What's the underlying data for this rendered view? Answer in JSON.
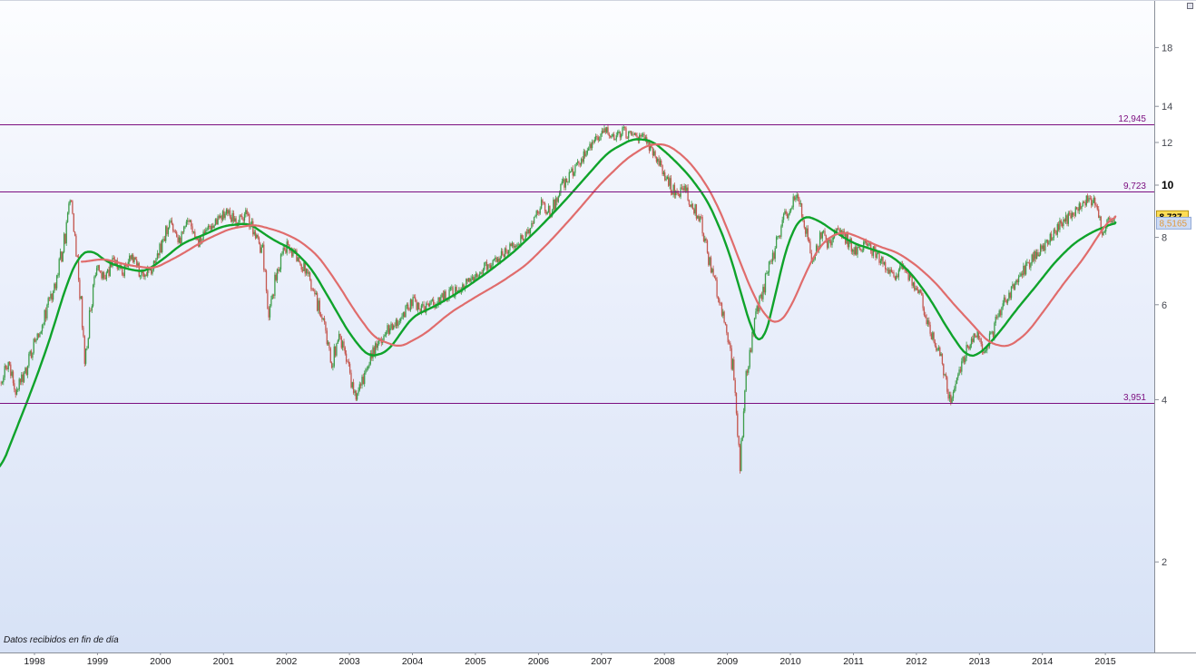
{
  "footer": {
    "note": "Datos recibidos en fin de día"
  },
  "colors": {
    "up_candle": "#3d9d4a",
    "down_candle": "#c4574f",
    "ma_green": "#0fa32b",
    "ma_red": "#e06c6c",
    "level": "#7c0f80",
    "axis_line": "#8a8f99",
    "tick_text": "#44474f",
    "tick_text_emph": "#000000",
    "year_text": "#1a1b1f",
    "bg_top": "#fcfdff",
    "bg_mid": "#eaeffb",
    "bg_bottom": "#d7e2f6",
    "tag_yellow_bg": "#ffdd55",
    "tag_yellow_border": "#b39112",
    "tag_yellow_text": "#000000",
    "tag_blue_bg": "#ccdbf6",
    "tag_blue_border": "#93a9d6",
    "tag_blue_text": "#e09a3e"
  },
  "chart_data": {
    "type": "candlestick",
    "title": "",
    "x_axis": {
      "years": [
        "1998",
        "1999",
        "2000",
        "2001",
        "2002",
        "2003",
        "2004",
        "2005",
        "2006",
        "2007",
        "2008",
        "2009",
        "2010",
        "2011",
        "2012",
        "2013",
        "2014",
        "2015"
      ],
      "start_year": 1998
    },
    "y_axis": {
      "scale": "log",
      "ticks": [
        {
          "label": "18",
          "value": 18,
          "emphasized": false
        },
        {
          "label": "14",
          "value": 14,
          "emphasized": false
        },
        {
          "label": "12",
          "value": 12,
          "emphasized": false
        },
        {
          "label": "10",
          "value": 10,
          "emphasized": true
        },
        {
          "label": "8",
          "value": 8,
          "emphasized": false
        },
        {
          "label": "6",
          "value": 6,
          "emphasized": false
        },
        {
          "label": "4",
          "value": 4,
          "emphasized": false
        },
        {
          "label": "2",
          "value": 2,
          "emphasized": false
        }
      ]
    },
    "levels": [
      {
        "label": "12,945",
        "value": 12.945
      },
      {
        "label": "9,723",
        "value": 9.723
      },
      {
        "label": "3,951",
        "value": 3.951
      }
    ],
    "price_tags": [
      {
        "label": "8,737",
        "value": 8.737,
        "style": "last-price"
      },
      {
        "label": "8,5165",
        "value": 8.5165,
        "style": "indicator"
      }
    ],
    "candle_synthesis": {
      "seed": 20150309,
      "per_year": 52,
      "start": 1997.45,
      "end": 2015.16,
      "volatility": 0.021,
      "wick": 0.013
    },
    "series": [
      {
        "name": "price",
        "type": "candlestick",
        "keypoints": [
          [
            1997.45,
            4.3
          ],
          [
            1997.58,
            4.65
          ],
          [
            1997.7,
            4.1
          ],
          [
            1997.85,
            4.5
          ],
          [
            1998.0,
            5.1
          ],
          [
            1998.15,
            5.7
          ],
          [
            1998.3,
            6.4
          ],
          [
            1998.45,
            7.6
          ],
          [
            1998.58,
            9.6
          ],
          [
            1998.66,
            7.8
          ],
          [
            1998.74,
            6.2
          ],
          [
            1998.8,
            4.75
          ],
          [
            1998.9,
            5.9
          ],
          [
            1999.0,
            7.2
          ],
          [
            1999.12,
            6.6
          ],
          [
            1999.25,
            7.3
          ],
          [
            1999.4,
            6.9
          ],
          [
            1999.55,
            7.4
          ],
          [
            1999.7,
            6.8
          ],
          [
            1999.85,
            7.0
          ],
          [
            2000.0,
            7.6
          ],
          [
            2000.15,
            8.6
          ],
          [
            2000.3,
            7.9
          ],
          [
            2000.45,
            8.5
          ],
          [
            2000.6,
            7.8
          ],
          [
            2000.75,
            8.2
          ],
          [
            2000.9,
            8.6
          ],
          [
            2001.05,
            8.9
          ],
          [
            2001.2,
            8.5
          ],
          [
            2001.35,
            8.8
          ],
          [
            2001.5,
            8.1
          ],
          [
            2001.62,
            7.5
          ],
          [
            2001.72,
            5.8
          ],
          [
            2001.85,
            6.9
          ],
          [
            2002.0,
            7.7
          ],
          [
            2002.15,
            7.4
          ],
          [
            2002.3,
            7.0
          ],
          [
            2002.45,
            6.3
          ],
          [
            2002.6,
            5.4
          ],
          [
            2002.72,
            4.6
          ],
          [
            2002.82,
            5.3
          ],
          [
            2002.95,
            4.7
          ],
          [
            2003.1,
            4.0
          ],
          [
            2003.25,
            4.5
          ],
          [
            2003.4,
            5.0
          ],
          [
            2003.55,
            5.3
          ],
          [
            2003.7,
            5.5
          ],
          [
            2003.85,
            5.8
          ],
          [
            2004.0,
            6.1
          ],
          [
            2004.15,
            5.9
          ],
          [
            2004.3,
            6.0
          ],
          [
            2004.5,
            6.2
          ],
          [
            2004.7,
            6.4
          ],
          [
            2004.9,
            6.7
          ],
          [
            2005.1,
            7.0
          ],
          [
            2005.3,
            7.2
          ],
          [
            2005.5,
            7.6
          ],
          [
            2005.7,
            7.9
          ],
          [
            2005.9,
            8.5
          ],
          [
            2006.05,
            9.2
          ],
          [
            2006.2,
            8.9
          ],
          [
            2006.35,
            9.9
          ],
          [
            2006.5,
            10.5
          ],
          [
            2006.65,
            11.1
          ],
          [
            2006.8,
            11.7
          ],
          [
            2006.95,
            12.2
          ],
          [
            2007.08,
            12.8
          ],
          [
            2007.2,
            12.3
          ],
          [
            2007.32,
            12.6
          ],
          [
            2007.45,
            12.4
          ],
          [
            2007.6,
            12.3
          ],
          [
            2007.75,
            11.9
          ],
          [
            2007.9,
            11.2
          ],
          [
            2008.05,
            10.2
          ],
          [
            2008.18,
            9.6
          ],
          [
            2008.3,
            9.9
          ],
          [
            2008.45,
            9.2
          ],
          [
            2008.6,
            8.4
          ],
          [
            2008.72,
            7.2
          ],
          [
            2008.85,
            6.3
          ],
          [
            2009.0,
            5.3
          ],
          [
            2009.12,
            4.3
          ],
          [
            2009.2,
            3.0
          ],
          [
            2009.28,
            4.3
          ],
          [
            2009.38,
            5.2
          ],
          [
            2009.5,
            6.0
          ],
          [
            2009.62,
            6.8
          ],
          [
            2009.75,
            7.6
          ],
          [
            2009.88,
            8.5
          ],
          [
            2010.0,
            9.2
          ],
          [
            2010.1,
            9.6
          ],
          [
            2010.22,
            8.6
          ],
          [
            2010.35,
            7.2
          ],
          [
            2010.5,
            8.2
          ],
          [
            2010.62,
            7.7
          ],
          [
            2010.75,
            8.3
          ],
          [
            2010.9,
            7.9
          ],
          [
            2011.05,
            7.5
          ],
          [
            2011.2,
            7.9
          ],
          [
            2011.35,
            7.4
          ],
          [
            2011.5,
            7.1
          ],
          [
            2011.65,
            6.7
          ],
          [
            2011.8,
            7.1
          ],
          [
            2011.95,
            6.6
          ],
          [
            2012.1,
            6.0
          ],
          [
            2012.25,
            5.3
          ],
          [
            2012.4,
            4.7
          ],
          [
            2012.55,
            3.95
          ],
          [
            2012.68,
            4.6
          ],
          [
            2012.82,
            5.0
          ],
          [
            2012.95,
            5.3
          ],
          [
            2013.1,
            4.9
          ],
          [
            2013.25,
            5.5
          ],
          [
            2013.4,
            6.1
          ],
          [
            2013.55,
            6.5
          ],
          [
            2013.7,
            6.9
          ],
          [
            2013.85,
            7.3
          ],
          [
            2014.0,
            7.7
          ],
          [
            2014.15,
            8.0
          ],
          [
            2014.3,
            8.5
          ],
          [
            2014.45,
            8.8
          ],
          [
            2014.6,
            9.2
          ],
          [
            2014.75,
            9.55
          ],
          [
            2014.85,
            9.0
          ],
          [
            2014.95,
            8.2
          ],
          [
            2015.05,
            8.55
          ],
          [
            2015.16,
            8.737
          ]
        ]
      },
      {
        "name": "moving-average-green",
        "type": "line",
        "color_key": "ma_green",
        "keypoints": [
          [
            1997.45,
            2.95
          ],
          [
            1997.7,
            3.5
          ],
          [
            1998.0,
            4.3
          ],
          [
            1998.25,
            5.2
          ],
          [
            1998.5,
            6.5
          ],
          [
            1998.7,
            7.4
          ],
          [
            1998.9,
            7.6
          ],
          [
            1999.15,
            7.2
          ],
          [
            1999.45,
            7.0
          ],
          [
            1999.75,
            6.9
          ],
          [
            2000.05,
            7.3
          ],
          [
            2000.35,
            7.8
          ],
          [
            2000.7,
            8.1
          ],
          [
            2001.0,
            8.4
          ],
          [
            2001.4,
            8.5
          ],
          [
            2001.8,
            7.9
          ],
          [
            2002.1,
            7.6
          ],
          [
            2002.4,
            7.0
          ],
          [
            2002.7,
            6.1
          ],
          [
            2003.0,
            5.3
          ],
          [
            2003.3,
            4.8
          ],
          [
            2003.6,
            4.9
          ],
          [
            2004.0,
            5.7
          ],
          [
            2004.4,
            6.0
          ],
          [
            2004.8,
            6.4
          ],
          [
            2005.2,
            6.9
          ],
          [
            2005.6,
            7.5
          ],
          [
            2006.0,
            8.3
          ],
          [
            2006.4,
            9.3
          ],
          [
            2006.8,
            10.5
          ],
          [
            2007.1,
            11.5
          ],
          [
            2007.5,
            12.2
          ],
          [
            2007.8,
            12.1
          ],
          [
            2008.1,
            11.3
          ],
          [
            2008.4,
            10.4
          ],
          [
            2008.7,
            9.3
          ],
          [
            2009.0,
            7.7
          ],
          [
            2009.2,
            6.4
          ],
          [
            2009.4,
            5.3
          ],
          [
            2009.55,
            5.0
          ],
          [
            2009.7,
            5.8
          ],
          [
            2009.85,
            7.0
          ],
          [
            2010.0,
            8.1
          ],
          [
            2010.2,
            8.8
          ],
          [
            2010.45,
            8.6
          ],
          [
            2010.7,
            8.2
          ],
          [
            2011.0,
            7.8
          ],
          [
            2011.3,
            7.6
          ],
          [
            2011.6,
            7.4
          ],
          [
            2011.9,
            6.9
          ],
          [
            2012.2,
            6.2
          ],
          [
            2012.5,
            5.4
          ],
          [
            2012.8,
            4.8
          ],
          [
            2013.0,
            4.85
          ],
          [
            2013.3,
            5.3
          ],
          [
            2013.6,
            5.9
          ],
          [
            2013.9,
            6.5
          ],
          [
            2014.2,
            7.2
          ],
          [
            2014.5,
            7.8
          ],
          [
            2014.8,
            8.2
          ],
          [
            2015.16,
            8.52
          ]
        ]
      },
      {
        "name": "moving-average-red",
        "type": "line",
        "color_key": "ma_red",
        "keypoints": [
          [
            1998.75,
            7.2
          ],
          [
            1999.1,
            7.3
          ],
          [
            1999.5,
            7.1
          ],
          [
            1999.9,
            7.0
          ],
          [
            2000.3,
            7.4
          ],
          [
            2000.7,
            7.9
          ],
          [
            2001.1,
            8.3
          ],
          [
            2001.5,
            8.45
          ],
          [
            2001.9,
            8.2
          ],
          [
            2002.2,
            7.9
          ],
          [
            2002.5,
            7.4
          ],
          [
            2002.8,
            6.6
          ],
          [
            2003.1,
            5.8
          ],
          [
            2003.4,
            5.2
          ],
          [
            2003.8,
            5.0
          ],
          [
            2004.2,
            5.3
          ],
          [
            2004.6,
            5.8
          ],
          [
            2005.0,
            6.2
          ],
          [
            2005.4,
            6.6
          ],
          [
            2005.8,
            7.1
          ],
          [
            2006.2,
            7.9
          ],
          [
            2006.6,
            8.9
          ],
          [
            2007.0,
            10.1
          ],
          [
            2007.4,
            11.2
          ],
          [
            2007.75,
            11.9
          ],
          [
            2008.05,
            11.9
          ],
          [
            2008.35,
            11.2
          ],
          [
            2008.6,
            10.3
          ],
          [
            2008.8,
            9.4
          ],
          [
            2009.0,
            8.3
          ],
          [
            2009.2,
            7.2
          ],
          [
            2009.4,
            6.3
          ],
          [
            2009.6,
            5.7
          ],
          [
            2009.8,
            5.5
          ],
          [
            2010.0,
            5.9
          ],
          [
            2010.2,
            6.7
          ],
          [
            2010.4,
            7.5
          ],
          [
            2010.6,
            8.0
          ],
          [
            2010.85,
            8.2
          ],
          [
            2011.1,
            8.0
          ],
          [
            2011.4,
            7.7
          ],
          [
            2011.7,
            7.5
          ],
          [
            2012.0,
            7.1
          ],
          [
            2012.3,
            6.6
          ],
          [
            2012.6,
            6.0
          ],
          [
            2012.9,
            5.5
          ],
          [
            2013.15,
            5.1
          ],
          [
            2013.45,
            5.0
          ],
          [
            2013.75,
            5.3
          ],
          [
            2014.05,
            5.9
          ],
          [
            2014.35,
            6.6
          ],
          [
            2014.65,
            7.3
          ],
          [
            2014.9,
            8.1
          ],
          [
            2015.05,
            8.6
          ],
          [
            2015.16,
            8.75
          ]
        ]
      }
    ]
  }
}
